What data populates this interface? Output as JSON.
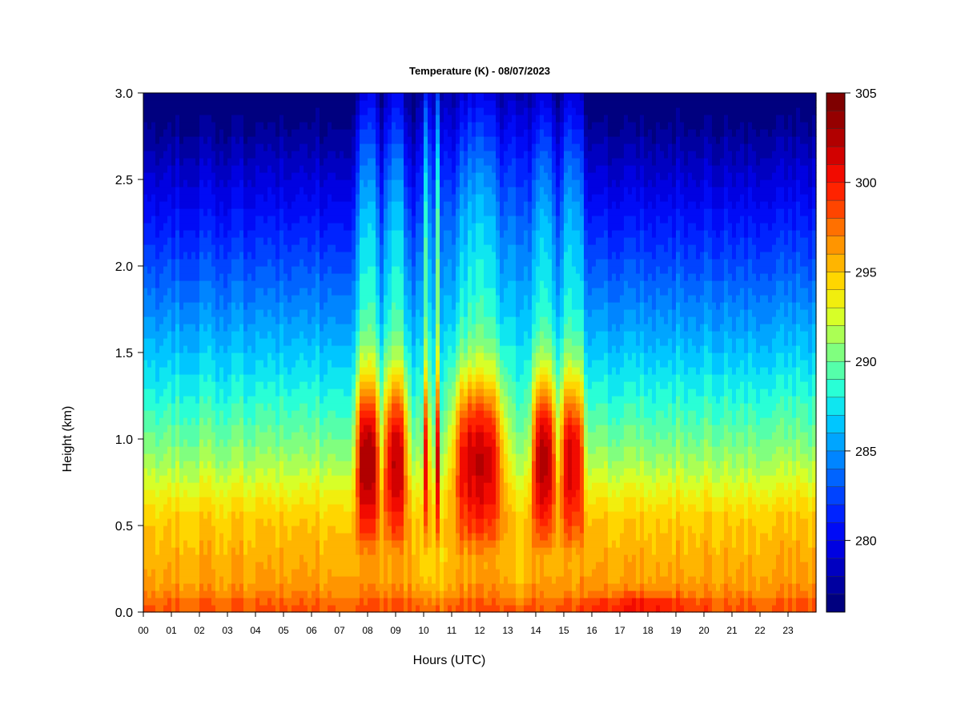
{
  "chart_data": {
    "type": "heatmap",
    "title": "Temperature (K) - 08/07/2023",
    "xlabel": "Hours (UTC)",
    "ylabel": "Height (km)",
    "x_ticks": [
      "00",
      "01",
      "02",
      "03",
      "04",
      "05",
      "06",
      "07",
      "08",
      "09",
      "10",
      "11",
      "12",
      "13",
      "14",
      "15",
      "16",
      "17",
      "18",
      "19",
      "20",
      "21",
      "22",
      "23"
    ],
    "x_range": [
      0,
      24
    ],
    "y_ticks": [
      "0.0",
      "0.5",
      "1.0",
      "1.5",
      "2.0",
      "2.5",
      "3.0"
    ],
    "y_range": [
      0.0,
      3.0
    ],
    "colorbar": {
      "ticks": [
        "280",
        "285",
        "290",
        "295",
        "300",
        "305"
      ],
      "range": [
        276,
        305
      ],
      "levels": 29,
      "colors": [
        "#00007f",
        "#0000b0",
        "#0000e0",
        "#0010ff",
        "#0040ff",
        "#0070ff",
        "#00a0ff",
        "#00d0ff",
        "#20ffdf",
        "#60ff9f",
        "#a0ff5f",
        "#e0ff1f",
        "#ffe000",
        "#ffb000",
        "#ff8000",
        "#ff4000",
        "#ff1000",
        "#d00000",
        "#9f0000",
        "#7f0000"
      ]
    },
    "z_units": "K",
    "profile_description": "temperature decreases with height; warm cores (>300 K) between 0.5 and 1.8 km during daytime convective plumes",
    "warm_plumes": [
      {
        "t_start": 7.6,
        "t_end": 8.4,
        "peak": 304
      },
      {
        "t_start": 8.6,
        "t_end": 9.4,
        "peak": 303
      },
      {
        "t_start": 10.0,
        "t_end": 10.2,
        "peak": 302
      },
      {
        "t_start": 10.4,
        "t_end": 10.6,
        "peak": 302
      },
      {
        "t_start": 11.1,
        "t_end": 12.8,
        "peak": 303
      },
      {
        "t_start": 13.9,
        "t_end": 14.7,
        "peak": 304
      },
      {
        "t_start": 14.9,
        "t_end": 15.7,
        "peak": 303
      }
    ],
    "cool_columns": [
      {
        "t_start": 9.7,
        "t_end": 11.0
      },
      {
        "t_start": 12.9,
        "t_end": 13.8
      }
    ]
  }
}
